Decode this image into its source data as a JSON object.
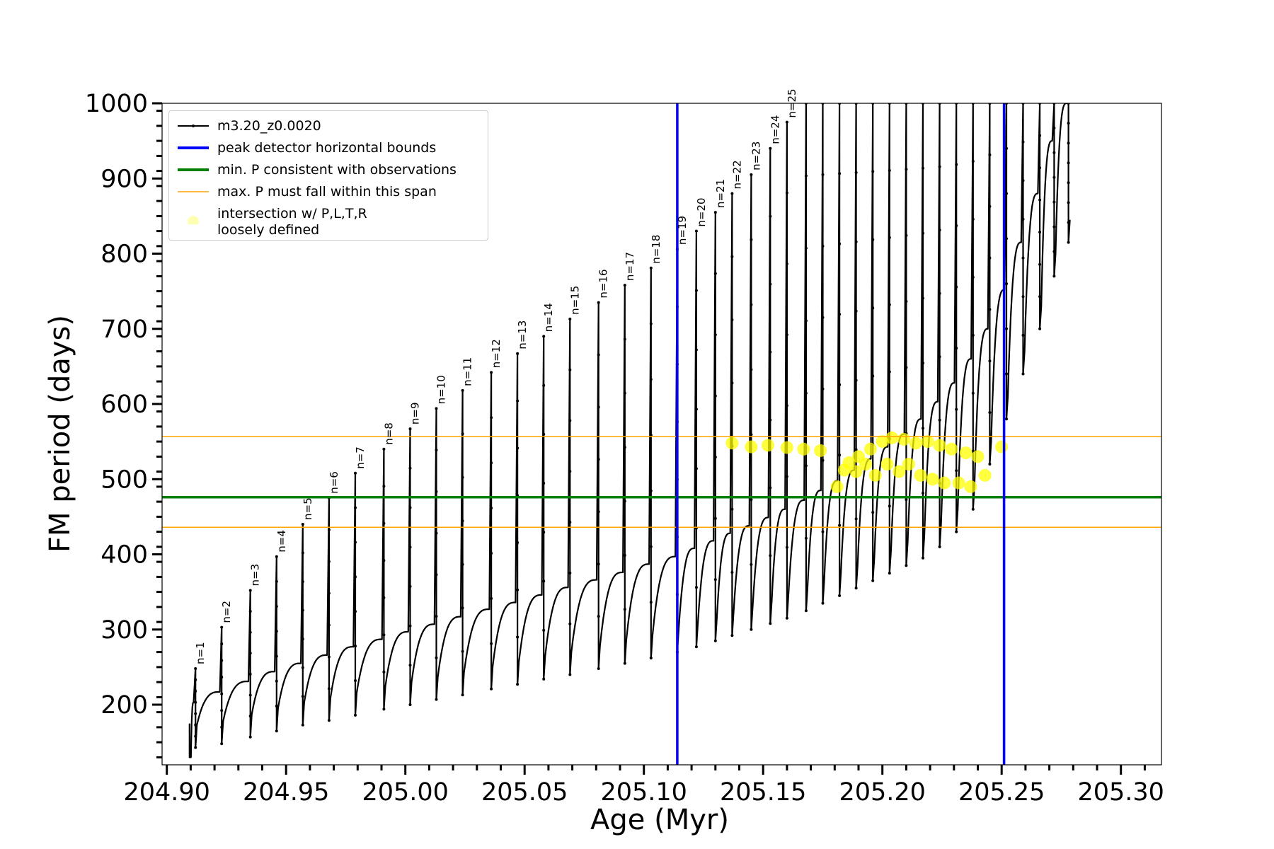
{
  "chart_data": {
    "type": "line",
    "xlabel": "Age (Myr)",
    "ylabel": "FM period (days)",
    "xlim": [
      204.898,
      205.317
    ],
    "ylim": [
      120,
      1000
    ],
    "x_ticks": [
      204.9,
      204.95,
      205.0,
      205.05,
      205.1,
      205.15,
      205.2,
      205.25,
      205.3
    ],
    "x_tick_labels": [
      "204.90",
      "204.95",
      "205.00",
      "205.05",
      "205.10",
      "205.15",
      "205.20",
      "205.25",
      "205.30"
    ],
    "y_ticks": [
      200,
      300,
      400,
      500,
      600,
      700,
      800,
      900,
      1000
    ],
    "y_tick_labels": [
      "200",
      "300",
      "400",
      "500",
      "600",
      "700",
      "800",
      "900",
      "1000"
    ],
    "grid": false,
    "legend_position": "top-left",
    "legend": [
      {
        "label": "m3.20_z0.0020",
        "style": "line-marker",
        "color": "#000000"
      },
      {
        "label": "peak detector horizontal bounds",
        "style": "thick-line",
        "color": "#0000ff"
      },
      {
        "label": "min. P consistent with observations",
        "style": "thick-line",
        "color": "#008000"
      },
      {
        "label": "max. P must fall within this span",
        "style": "thin-line",
        "color": "#ffa500"
      },
      {
        "label": "intersection w/ P,L,T,R\nloosely defined",
        "style": "marker",
        "color": "#ffff00"
      }
    ],
    "vertical_lines": {
      "color": "#0000ff",
      "x": [
        205.114,
        205.251
      ]
    },
    "hlines": [
      {
        "y": 476,
        "color": "#008000"
      },
      {
        "y": 557,
        "color": "#ffa500"
      },
      {
        "y": 436,
        "color": "#ffa500"
      }
    ],
    "pulses": [
      {
        "label": "n=1",
        "x": 204.912,
        "peak": 248,
        "low": 143,
        "base": 203
      },
      {
        "label": "n=2",
        "x": 204.923,
        "peak": 303,
        "low": 148,
        "base": 217
      },
      {
        "label": "n=3",
        "x": 204.935,
        "peak": 352,
        "low": 157,
        "base": 231
      },
      {
        "label": "n=4",
        "x": 204.946,
        "peak": 397,
        "low": 165,
        "base": 244
      },
      {
        "label": "n=5",
        "x": 204.957,
        "peak": 440,
        "low": 173,
        "base": 255
      },
      {
        "label": "n=6",
        "x": 204.968,
        "peak": 475,
        "low": 179,
        "base": 266
      },
      {
        "label": "n=7",
        "x": 204.979,
        "peak": 508,
        "low": 186,
        "base": 277
      },
      {
        "label": "n=8",
        "x": 204.991,
        "peak": 540,
        "low": 194,
        "base": 287
      },
      {
        "label": "n=9",
        "x": 205.002,
        "peak": 567,
        "low": 200,
        "base": 297
      },
      {
        "label": "n=10",
        "x": 205.013,
        "peak": 594,
        "low": 207,
        "base": 307
      },
      {
        "label": "n=11",
        "x": 205.024,
        "peak": 618,
        "low": 213,
        "base": 317
      },
      {
        "label": "n=12",
        "x": 205.036,
        "peak": 642,
        "low": 221,
        "base": 327
      },
      {
        "label": "n=13",
        "x": 205.047,
        "peak": 667,
        "low": 227,
        "base": 336
      },
      {
        "label": "n=14",
        "x": 205.058,
        "peak": 690,
        "low": 234,
        "base": 346
      },
      {
        "label": "n=15",
        "x": 205.069,
        "peak": 713,
        "low": 240,
        "base": 356
      },
      {
        "label": "n=16",
        "x": 205.081,
        "peak": 735,
        "low": 248,
        "base": 366
      },
      {
        "label": "n=17",
        "x": 205.092,
        "peak": 758,
        "low": 255,
        "base": 376
      },
      {
        "label": "n=18",
        "x": 205.103,
        "peak": 781,
        "low": 262,
        "base": 387
      },
      {
        "label": "n=19",
        "x": 205.114,
        "peak": 806,
        "low": 270,
        "base": 397
      },
      {
        "label": "n=20",
        "x": 205.122,
        "peak": 830,
        "low": 277,
        "base": 408
      },
      {
        "label": "n=21",
        "x": 205.13,
        "peak": 855,
        "low": 285,
        "base": 418
      },
      {
        "label": "n=22",
        "x": 205.137,
        "peak": 880,
        "low": 292,
        "base": 428
      },
      {
        "label": "n=23",
        "x": 205.145,
        "peak": 905,
        "low": 300,
        "base": 438
      },
      {
        "label": "n=24",
        "x": 205.153,
        "peak": 940,
        "low": 308,
        "base": 449
      },
      {
        "label": "n=25",
        "x": 205.16,
        "peak": 975,
        "low": 315,
        "base": 460
      },
      {
        "label": "",
        "x": 205.168,
        "peak": 1000,
        "low": 325,
        "base": 472
      },
      {
        "label": "",
        "x": 205.175,
        "peak": 1000,
        "low": 335,
        "base": 485
      },
      {
        "label": "",
        "x": 205.182,
        "peak": 1000,
        "low": 345,
        "base": 498
      },
      {
        "label": "",
        "x": 205.189,
        "peak": 1000,
        "low": 355,
        "base": 512
      },
      {
        "label": "",
        "x": 205.196,
        "peak": 1000,
        "low": 365,
        "base": 527
      },
      {
        "label": "",
        "x": 205.203,
        "peak": 1000,
        "low": 375,
        "base": 543
      },
      {
        "label": "",
        "x": 205.21,
        "peak": 1000,
        "low": 385,
        "base": 560
      },
      {
        "label": "",
        "x": 205.217,
        "peak": 1000,
        "low": 395,
        "base": 580
      },
      {
        "label": "",
        "x": 205.224,
        "peak": 1000,
        "low": 410,
        "base": 603
      },
      {
        "label": "",
        "x": 205.231,
        "peak": 1000,
        "low": 430,
        "base": 628
      },
      {
        "label": "",
        "x": 205.238,
        "peak": 1000,
        "low": 460,
        "base": 660
      },
      {
        "label": "",
        "x": 205.245,
        "peak": 1000,
        "low": 520,
        "base": 700
      },
      {
        "label": "",
        "x": 205.252,
        "peak": 1000,
        "low": 580,
        "base": 752
      },
      {
        "label": "",
        "x": 205.259,
        "peak": 1000,
        "low": 640,
        "base": 815
      },
      {
        "label": "",
        "x": 205.266,
        "peak": 1000,
        "low": 700,
        "base": 880
      },
      {
        "label": "",
        "x": 205.272,
        "peak": 1000,
        "low": 770,
        "base": 950
      },
      {
        "label": "",
        "x": 205.278,
        "peak": 1000,
        "low": 815,
        "base": 1000
      }
    ],
    "intersections": [
      {
        "x": 205.137,
        "y": 548
      },
      {
        "x": 205.145,
        "y": 543
      },
      {
        "x": 205.152,
        "y": 545
      },
      {
        "x": 205.16,
        "y": 542
      },
      {
        "x": 205.167,
        "y": 540
      },
      {
        "x": 205.174,
        "y": 538
      },
      {
        "x": 205.181,
        "y": 490
      },
      {
        "x": 205.184,
        "y": 512
      },
      {
        "x": 205.186,
        "y": 522
      },
      {
        "x": 205.189,
        "y": 510
      },
      {
        "x": 205.19,
        "y": 530
      },
      {
        "x": 205.193,
        "y": 520
      },
      {
        "x": 205.195,
        "y": 540
      },
      {
        "x": 205.197,
        "y": 505
      },
      {
        "x": 205.2,
        "y": 550
      },
      {
        "x": 205.202,
        "y": 520
      },
      {
        "x": 205.204,
        "y": 555
      },
      {
        "x": 205.207,
        "y": 510
      },
      {
        "x": 205.209,
        "y": 553
      },
      {
        "x": 205.211,
        "y": 520
      },
      {
        "x": 205.214,
        "y": 548
      },
      {
        "x": 205.216,
        "y": 505
      },
      {
        "x": 205.219,
        "y": 550
      },
      {
        "x": 205.221,
        "y": 500
      },
      {
        "x": 205.224,
        "y": 545
      },
      {
        "x": 205.226,
        "y": 495
      },
      {
        "x": 205.229,
        "y": 540
      },
      {
        "x": 205.232,
        "y": 495
      },
      {
        "x": 205.235,
        "y": 535
      },
      {
        "x": 205.237,
        "y": 490
      },
      {
        "x": 205.24,
        "y": 530
      },
      {
        "x": 205.243,
        "y": 505
      },
      {
        "x": 205.25,
        "y": 543
      }
    ]
  }
}
